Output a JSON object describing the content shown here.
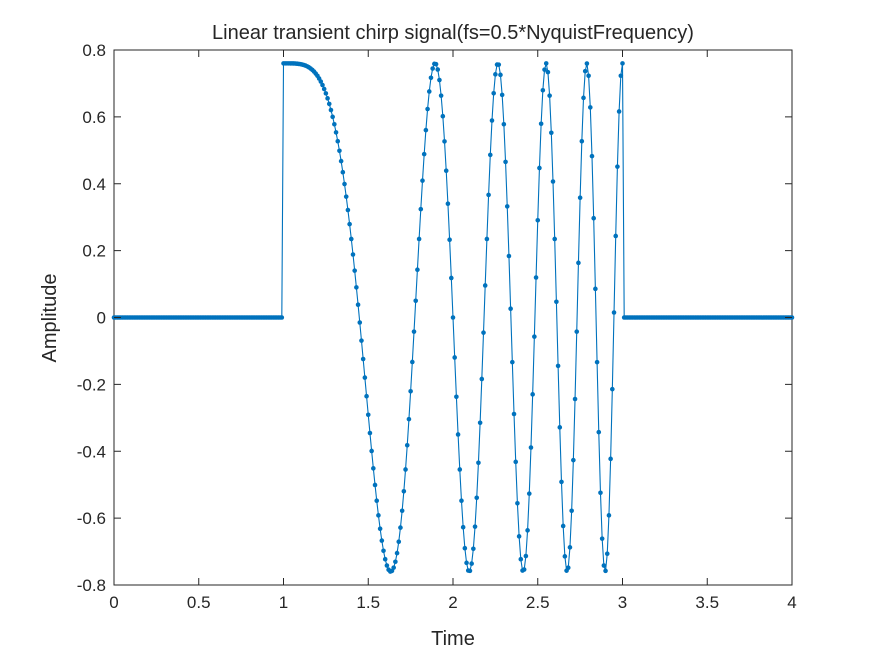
{
  "chart_data": {
    "type": "line",
    "title": "Linear transient chirp signal(fs=0.5*NyquistFrequency)",
    "xlabel": "Time",
    "ylabel": "Amplitude",
    "xlim": [
      0,
      4
    ],
    "ylim": [
      -0.8,
      0.8
    ],
    "xticks": [
      0,
      0.5,
      1,
      1.5,
      2,
      2.5,
      3,
      3.5,
      4
    ],
    "xtick_labels": [
      "0",
      "0.5",
      "1",
      "1.5",
      "2",
      "2.5",
      "3",
      "3.5",
      "4"
    ],
    "yticks": [
      -0.8,
      -0.6,
      -0.4,
      -0.2,
      0,
      0.2,
      0.4,
      0.6,
      0.8
    ],
    "ytick_labels": [
      "-0.8",
      "-0.6",
      "-0.4",
      "-0.2",
      "0",
      "0.2",
      "0.4",
      "0.6",
      "0.8"
    ],
    "grid": false,
    "line_color": "#0072BD",
    "marker": "dot",
    "series": [
      {
        "sampling": "uniform",
        "x_start": 0,
        "x_end": 4,
        "n_points": 401,
        "chirp": {
          "active_from": 1,
          "active_to": 3,
          "amplitude": 0.76,
          "f0": 0,
          "f1": 5
        }
      }
    ]
  }
}
